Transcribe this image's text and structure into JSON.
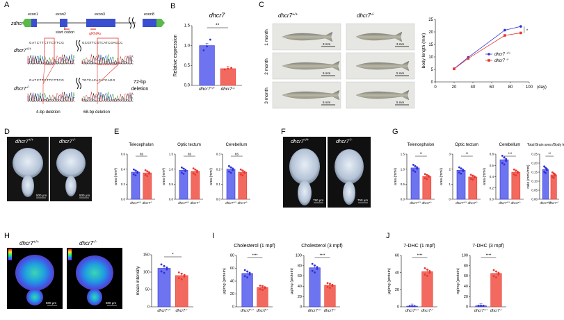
{
  "colors": {
    "blue": "#2f2fd8",
    "blue_fill": "#6e74f0",
    "red": "#e8362e",
    "red_fill": "#f26a5f",
    "axis": "#000000"
  },
  "panel_labels": [
    "A",
    "B",
    "C",
    "D",
    "E",
    "F",
    "G",
    "H",
    "I",
    "J"
  ],
  "A": {
    "gene": "zdhcr7",
    "exons": [
      "exon1",
      "exon2",
      "exon3",
      "exon8"
    ],
    "start_codon": "start codon",
    "grnas": "gRNAs",
    "row_wt": "dhcr7",
    "row_wt_sup": "+/+",
    "row_ko": "dhcr7",
    "row_ko_sup": "-/-",
    "seq_wt_left": "GATCTTCTTCTTCG",
    "seq_wt_right": "GCGTTCGTCATCGAGCC",
    "seq_ko_left": "GATCTTCTTCTTCG",
    "seq_ko_right": "TGTCACACATCAGG",
    "del1": "4-bp deletion",
    "del2": "68-bp deletion",
    "del3_line1": "72-bp",
    "del3_line2": "deletion"
  },
  "B": {
    "title": "dhcr7",
    "sig": "**"
  },
  "C": {
    "col_wt": "dhcr7",
    "col_wt_sup": "+/+",
    "col_ko": "dhcr7",
    "col_ko_sup": "-/-",
    "rows": [
      "1 month",
      "2 month",
      "3 month"
    ],
    "scale_bars": [
      "3 mm",
      "3 mm",
      "5 mm",
      "5 mm",
      "5 mm",
      "5 mm"
    ],
    "sig": "*"
  },
  "D": {
    "wt": "dhcr7",
    "wt_sup": "+/+",
    "ko": "dhcr7",
    "ko_sup": "-/-",
    "scale1": "500 μm",
    "scale2": "500 μm"
  },
  "F": {
    "wt": "dhcr7",
    "wt_sup": "+/+",
    "ko": "dhcr7",
    "ko_sup": "-/-",
    "scale1": "750 μm",
    "scale2": "750 μm"
  },
  "H": {
    "wt": "dhcr7",
    "wt_sup": "+/+",
    "ko": "dhcr7",
    "ko_sup": "-/-",
    "scale1": "500 μm",
    "scale2": "500 μm"
  },
  "chart_data": [
    {
      "panel": "B",
      "type": "bar",
      "title": "dhcr7",
      "ylabel": "Relative expression",
      "ylim": [
        0,
        1.5
      ],
      "yticks": [
        "0.0",
        "0.5",
        "1.0",
        "1.5"
      ],
      "categories": [
        "dhcr7 +/+",
        "dhcr7 -/-"
      ],
      "values": [
        1.0,
        0.42
      ],
      "points": [
        [
          0.88,
          0.98,
          1.15
        ],
        [
          0.4,
          0.42,
          0.44
        ]
      ],
      "sig": "**"
    },
    {
      "panel": "C",
      "type": "line",
      "xlabel": "(day)",
      "ylabel": "body length (mm)",
      "xlim": [
        0,
        100
      ],
      "ylim": [
        0,
        25
      ],
      "xticks": [
        "0",
        "20",
        "40",
        "60",
        "80",
        "100"
      ],
      "yticks": [
        "0",
        "5",
        "10",
        "15",
        "20",
        "25"
      ],
      "series": [
        {
          "name": "dhcr7 +/+",
          "x": [
            20,
            35,
            74,
            91
          ],
          "y": [
            5.3,
            9.8,
            20.7,
            22.2
          ]
        },
        {
          "name": "dhcr7 -/-",
          "x": [
            20,
            35,
            74,
            91
          ],
          "y": [
            5.2,
            9.4,
            18.6,
            19.6
          ]
        }
      ],
      "legend": "bottom-right",
      "sig": "*"
    },
    {
      "panel": "E",
      "type": "bar",
      "title": "Telecephalon",
      "ylabel": "area (mm²)",
      "ylim": [
        0,
        0.6
      ],
      "yticks": [
        "0.0",
        "0.2",
        "0.4",
        "0.6"
      ],
      "categories": [
        "dhcr7 +/+",
        "dhcr7 -/-"
      ],
      "values": [
        0.36,
        0.35
      ],
      "sig": "ns"
    },
    {
      "panel": "E",
      "type": "bar",
      "title": "Optic tectum",
      "ylabel": "area (mm²)",
      "ylim": [
        0,
        1.5
      ],
      "yticks": [
        "0.0",
        "0.5",
        "1.0",
        "1.5"
      ],
      "categories": [
        "dhcr7 +/+",
        "dhcr7 -/-"
      ],
      "values": [
        0.96,
        0.93
      ],
      "sig": "ns"
    },
    {
      "panel": "E",
      "type": "bar",
      "title": "Cerebellum",
      "ylabel": "area (mm²)",
      "ylim": [
        0,
        0.3
      ],
      "yticks": [
        "0.0",
        "0.1",
        "0.2",
        "0.3"
      ],
      "categories": [
        "dhcr7 +/+",
        "dhcr7 -/-"
      ],
      "values": [
        0.2,
        0.18
      ],
      "sig": "ns"
    },
    {
      "panel": "G",
      "type": "bar",
      "title": "Telencephalon",
      "ylabel": "area (mm²)",
      "ylim": [
        0,
        1.5
      ],
      "yticks": [
        "0.0",
        "0.5",
        "1.0",
        "1.5"
      ],
      "categories": [
        "dhcr7 +/+",
        "dhcr7 -/-"
      ],
      "values": [
        1.04,
        0.76
      ],
      "sig": "**"
    },
    {
      "panel": "G",
      "type": "bar",
      "title": "Optic tectum",
      "ylabel": "area (mm²)",
      "ylim": [
        0,
        3
      ],
      "yticks": [
        "0",
        "1",
        "2",
        "3"
      ],
      "categories": [
        "dhcr7 +/+",
        "dhcr7 -/-"
      ],
      "values": [
        1.93,
        1.48
      ],
      "sig": "**"
    },
    {
      "panel": "G",
      "type": "bar",
      "title": "Cerebellum",
      "ylabel": "area (mm²)",
      "ylim": [
        0,
        0.8
      ],
      "yticks": [
        "0.0",
        "0.2",
        "0.4",
        "0.6",
        "0.8"
      ],
      "categories": [
        "dhcr7 +/+",
        "dhcr7 -/-"
      ],
      "values": [
        0.7,
        0.48
      ],
      "sig": "***"
    },
    {
      "panel": "G",
      "type": "bar",
      "title": "Total Brain area /Body length",
      "ylabel": "ratio (mm²/mm)",
      "ylim": [
        0,
        0.25
      ],
      "yticks": [
        "0.00",
        "0.05",
        "0.10",
        "0.15",
        "0.20",
        "0.25"
      ],
      "categories": [
        "dhcr7 +/+",
        "dhcr7 -/-"
      ],
      "values": [
        0.165,
        0.135
      ],
      "sig": "**"
    },
    {
      "panel": "H",
      "type": "bar",
      "ylabel": "mean intensity",
      "ylim": [
        0,
        150
      ],
      "yticks": [
        "0",
        "50",
        "100",
        "150"
      ],
      "categories": [
        "dhcr7 +/+",
        "dhcr7 -/-"
      ],
      "values": [
        111,
        90
      ],
      "sig": "*"
    },
    {
      "panel": "I",
      "type": "bar",
      "title": "Cholesterol (1 mpf)",
      "ylabel": "μg/mg (protein)",
      "ylim": [
        0,
        80
      ],
      "yticks": [
        "0",
        "20",
        "40",
        "60",
        "80"
      ],
      "categories": [
        "dhcr7 +/+",
        "dhcr7 -/-"
      ],
      "values": [
        52,
        30
      ],
      "sig": "****"
    },
    {
      "panel": "I",
      "type": "bar",
      "title": "Cholesterol (3 mpf)",
      "ylabel": "μg/mg (protein)",
      "ylim": [
        0,
        100
      ],
      "yticks": [
        "0",
        "20",
        "40",
        "60",
        "80",
        "100"
      ],
      "categories": [
        "dhcr7 +/+",
        "dhcr7 -/-"
      ],
      "values": [
        76,
        42
      ],
      "sig": "****"
    },
    {
      "panel": "J",
      "type": "bar",
      "title": "7-DHC (1 mpf)",
      "ylabel": "μg/mg (protein)",
      "ylim": [
        0,
        60
      ],
      "yticks": [
        "0",
        "20",
        "40",
        "60"
      ],
      "categories": [
        "dhcr7 +/+",
        "dhcr7 -/-"
      ],
      "values": [
        0.8,
        41
      ],
      "sig": "****"
    },
    {
      "panel": "J",
      "type": "bar",
      "title": "7-DHC (3 mpf)",
      "ylabel": "ng/mg (protein)",
      "ylim": [
        0,
        100
      ],
      "yticks": [
        "0",
        "20",
        "40",
        "60",
        "80",
        "100"
      ],
      "categories": [
        "dhcr7 +/+",
        "dhcr7 -/-"
      ],
      "values": [
        2,
        65
      ],
      "sig": "****"
    }
  ]
}
